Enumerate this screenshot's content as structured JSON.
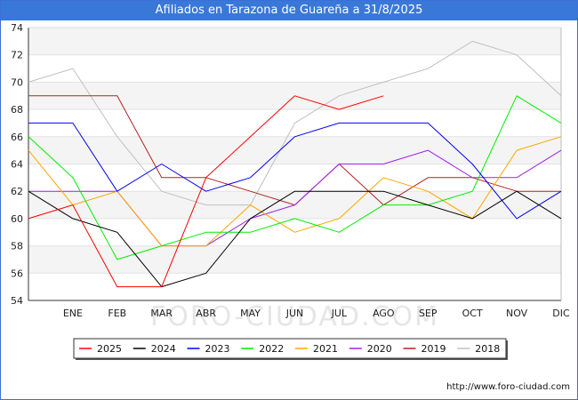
{
  "header": {
    "title": "Afiliados en Tarazona de Guareña a 31/8/2025"
  },
  "watermark": "FORO-CIUDAD.COM",
  "source": "http://www.foro-ciudad.com",
  "chart_data": {
    "type": "line",
    "title": "Afiliados en Tarazona de Guareña a 31/8/2025",
    "xlabel": "",
    "ylabel": "",
    "categories": [
      "",
      "ENE",
      "FEB",
      "MAR",
      "ABR",
      "MAY",
      "JUN",
      "JUL",
      "AGO",
      "SEP",
      "OCT",
      "NOV",
      "DIC"
    ],
    "ylim": [
      54,
      74
    ],
    "yticks": [
      54,
      56,
      58,
      60,
      62,
      64,
      66,
      68,
      70,
      72,
      74
    ],
    "grid": "horizontal bands",
    "legend_position": "bottom",
    "series": [
      {
        "name": "2025",
        "color": "#ff0000",
        "values": [
          60,
          61,
          55,
          55,
          63,
          66,
          69,
          68,
          69,
          null,
          null,
          null,
          null
        ]
      },
      {
        "name": "2024",
        "color": "#000000",
        "values": [
          62,
          60,
          59,
          55,
          56,
          60,
          62,
          62,
          62,
          61,
          60,
          62,
          60
        ]
      },
      {
        "name": "2023",
        "color": "#0000ff",
        "values": [
          67,
          67,
          62,
          64,
          62,
          63,
          66,
          67,
          67,
          67,
          64,
          60,
          62
        ]
      },
      {
        "name": "2022",
        "color": "#00ee00",
        "values": [
          66,
          63,
          57,
          58,
          59,
          59,
          60,
          59,
          61,
          61,
          62,
          69,
          67
        ]
      },
      {
        "name": "2021",
        "color": "#ffa500",
        "values": [
          65,
          61,
          62,
          58,
          58,
          61,
          59,
          60,
          63,
          62,
          60,
          65,
          66
        ]
      },
      {
        "name": "2020",
        "color": "#a020f0",
        "values": [
          62,
          62,
          62,
          58,
          58,
          60,
          61,
          64,
          64,
          65,
          63,
          63,
          65
        ]
      },
      {
        "name": "2019",
        "color": "#b22222",
        "values": [
          69,
          69,
          69,
          63,
          63,
          62,
          61,
          64,
          61,
          63,
          63,
          62,
          62
        ]
      },
      {
        "name": "2018",
        "color": "#c0c0c0",
        "values": [
          70,
          71,
          66,
          62,
          61,
          61,
          67,
          69,
          70,
          71,
          73,
          72,
          69
        ]
      }
    ]
  }
}
